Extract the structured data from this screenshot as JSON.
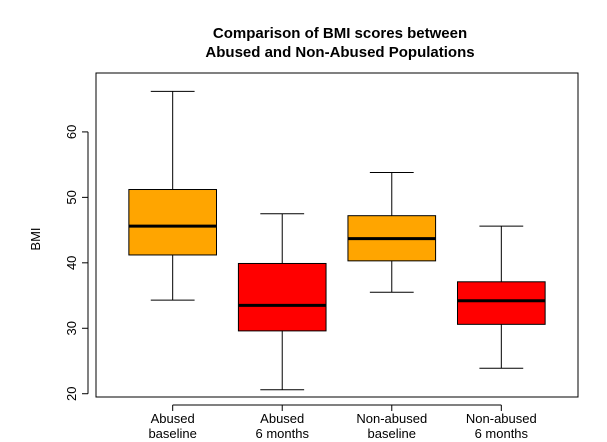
{
  "chart_data": {
    "type": "boxplot",
    "title": [
      "Comparison of BMI scores between",
      "Abused and Non-Abused Populations"
    ],
    "xlabel": "",
    "ylabel": "BMI",
    "ylim": [
      19.5,
      69
    ],
    "yticks": [
      20,
      30,
      40,
      50,
      60
    ],
    "categories": [
      [
        "Abused",
        "baseline"
      ],
      [
        "Abused",
        "6 months"
      ],
      [
        "Non-abused",
        "baseline"
      ],
      [
        "Non-abused",
        "6 months"
      ]
    ],
    "boxes": [
      {
        "min": 34.3,
        "q1": 41.2,
        "median": 45.6,
        "q3": 51.2,
        "max": 66.2,
        "color": "#FFA500"
      },
      {
        "min": 20.6,
        "q1": 29.6,
        "median": 33.5,
        "q3": 39.9,
        "max": 47.5,
        "color": "#FF0000"
      },
      {
        "min": 35.5,
        "q1": 40.3,
        "median": 43.7,
        "q3": 47.2,
        "max": 53.8,
        "color": "#FFA500"
      },
      {
        "min": 23.9,
        "q1": 30.6,
        "median": 34.2,
        "q3": 37.1,
        "max": 45.6,
        "color": "#FF0000"
      }
    ],
    "grid": false,
    "legend": "none"
  }
}
